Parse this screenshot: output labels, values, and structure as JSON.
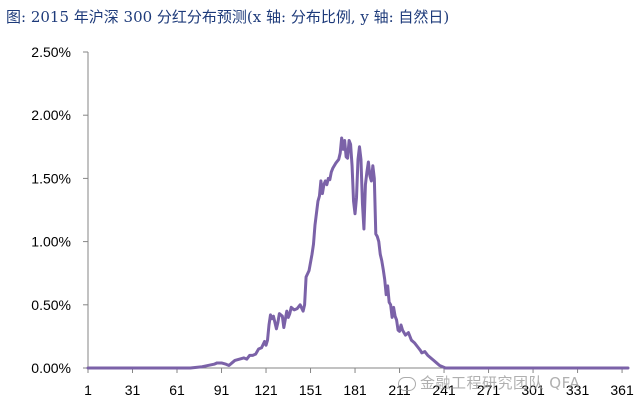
{
  "title": "图: 2015 年沪深 300 分红分布预测(x 轴: 分布比例, y 轴: 自然日)",
  "watermark": "金融工程研究团队 QFA",
  "colors": {
    "line": "#7b62a8",
    "axis": "#868686",
    "title": "#1d3a7a"
  },
  "chart_data": {
    "type": "line",
    "title": "图: 2015 年沪深 300 分红分布预测(x 轴: 分布比例, y 轴: 自然日)",
    "xlabel": "",
    "ylabel": "",
    "xlim": [
      1,
      365
    ],
    "ylim": [
      0,
      0.025
    ],
    "x_ticks": [
      "1",
      "31",
      "61",
      "91",
      "121",
      "151",
      "181",
      "211",
      "241",
      "271",
      "301",
      "331",
      "361"
    ],
    "y_ticks": [
      "0.00%",
      "0.50%",
      "1.00%",
      "1.50%",
      "2.00%",
      "2.50%"
    ],
    "grid": false,
    "legend": "none",
    "series": [
      {
        "points": [
          [
            1,
            0.0
          ],
          [
            60,
            0.0
          ],
          [
            70,
            0.0
          ],
          [
            78,
            0.0001
          ],
          [
            82,
            0.0002
          ],
          [
            86,
            0.0003
          ],
          [
            88,
            0.0004
          ],
          [
            91,
            0.0004
          ],
          [
            94,
            0.0003
          ],
          [
            96,
            0.0002
          ],
          [
            98,
            0.0004
          ],
          [
            100,
            0.0006
          ],
          [
            103,
            0.0007
          ],
          [
            106,
            0.0008
          ],
          [
            108,
            0.0007
          ],
          [
            110,
            0.001
          ],
          [
            112,
            0.001
          ],
          [
            114,
            0.0011
          ],
          [
            116,
            0.0015
          ],
          [
            118,
            0.0016
          ],
          [
            120,
            0.0021
          ],
          [
            121,
            0.0018
          ],
          [
            122,
            0.0022
          ],
          [
            123,
            0.0034
          ],
          [
            124,
            0.0042
          ],
          [
            125,
            0.0039
          ],
          [
            126,
            0.0041
          ],
          [
            128,
            0.0031
          ],
          [
            129,
            0.0036
          ],
          [
            130,
            0.0043
          ],
          [
            132,
            0.0041
          ],
          [
            133,
            0.0032
          ],
          [
            135,
            0.0045
          ],
          [
            136,
            0.004
          ],
          [
            137,
            0.0043
          ],
          [
            138,
            0.0048
          ],
          [
            140,
            0.0046
          ],
          [
            142,
            0.0047
          ],
          [
            144,
            0.005
          ],
          [
            146,
            0.0045
          ],
          [
            147,
            0.005
          ],
          [
            148,
            0.0072
          ],
          [
            150,
            0.0077
          ],
          [
            152,
            0.009
          ],
          [
            153,
            0.0098
          ],
          [
            154,
            0.0113
          ],
          [
            156,
            0.0132
          ],
          [
            157,
            0.0136
          ],
          [
            158,
            0.0148
          ],
          [
            159,
            0.0138
          ],
          [
            160,
            0.0145
          ],
          [
            161,
            0.0148
          ],
          [
            162,
            0.0145
          ],
          [
            163,
            0.015
          ],
          [
            164,
            0.0149
          ],
          [
            165,
            0.0155
          ],
          [
            166,
            0.0158
          ],
          [
            168,
            0.0162
          ],
          [
            170,
            0.0165
          ],
          [
            171,
            0.017
          ],
          [
            172,
            0.0182
          ],
          [
            173,
            0.0173
          ],
          [
            174,
            0.018
          ],
          [
            175,
            0.0167
          ],
          [
            176,
            0.0166
          ],
          [
            177,
            0.018
          ],
          [
            178,
            0.0177
          ],
          [
            179,
            0.016
          ],
          [
            180,
            0.0132
          ],
          [
            181,
            0.0122
          ],
          [
            182,
            0.0135
          ],
          [
            183,
            0.0165
          ],
          [
            184,
            0.0175
          ],
          [
            185,
            0.0165
          ],
          [
            186,
            0.013
          ],
          [
            187,
            0.011
          ],
          [
            188,
            0.0145
          ],
          [
            189,
            0.0155
          ],
          [
            190,
            0.0163
          ],
          [
            191,
            0.0152
          ],
          [
            192,
            0.0148
          ],
          [
            193,
            0.016
          ],
          [
            194,
            0.015
          ],
          [
            195,
            0.0106
          ],
          [
            196,
            0.0104
          ],
          [
            197,
            0.01
          ],
          [
            198,
            0.009
          ],
          [
            199,
            0.0085
          ],
          [
            200,
            0.0078
          ],
          [
            201,
            0.007
          ],
          [
            202,
            0.0058
          ],
          [
            203,
            0.0065
          ],
          [
            204,
            0.0052
          ],
          [
            205,
            0.005
          ],
          [
            206,
            0.004
          ],
          [
            207,
            0.0048
          ],
          [
            208,
            0.0041
          ],
          [
            209,
            0.0038
          ],
          [
            210,
            0.003
          ],
          [
            211,
            0.0029
          ],
          [
            212,
            0.0034
          ],
          [
            213,
            0.003
          ],
          [
            215,
            0.0026
          ],
          [
            217,
            0.0028
          ],
          [
            219,
            0.0022
          ],
          [
            221,
            0.002
          ],
          [
            223,
            0.0017
          ],
          [
            225,
            0.0014
          ],
          [
            226,
            0.0012
          ],
          [
            228,
            0.0013
          ],
          [
            230,
            0.001
          ],
          [
            232,
            0.0008
          ],
          [
            234,
            0.0006
          ],
          [
            236,
            0.0004
          ],
          [
            238,
            0.0002
          ],
          [
            240,
            0.0001
          ],
          [
            242,
            0.0
          ],
          [
            300,
            0.0
          ],
          [
            365,
            0.0
          ]
        ]
      }
    ]
  }
}
